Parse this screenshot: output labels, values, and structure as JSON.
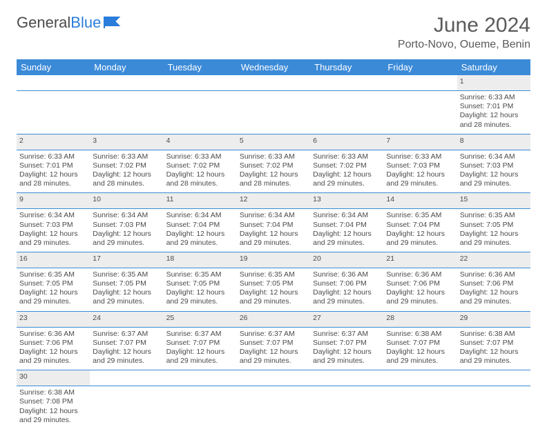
{
  "logo": {
    "text1": "General",
    "text2": "Blue",
    "accent_color": "#2a7ddb"
  },
  "title": "June 2024",
  "location": "Porto-Novo, Oueme, Benin",
  "colors": {
    "header_bg": "#3b8ad8",
    "header_text": "#ffffff",
    "daynum_bg": "#ededed",
    "divider": "#3b8ad8",
    "text": "#4a4a4a",
    "page_bg": "#ffffff"
  },
  "typography": {
    "title_fontsize": 30,
    "location_fontsize": 16,
    "dayhdr_fontsize": 13,
    "cell_fontsize": 10.5
  },
  "day_headers": [
    "Sunday",
    "Monday",
    "Tuesday",
    "Wednesday",
    "Thursday",
    "Friday",
    "Saturday"
  ],
  "weeks": [
    {
      "nums": [
        "",
        "",
        "",
        "",
        "",
        "",
        "1"
      ],
      "cells": [
        null,
        null,
        null,
        null,
        null,
        null,
        {
          "sunrise": "Sunrise: 6:33 AM",
          "sunset": "Sunset: 7:01 PM",
          "daylight1": "Daylight: 12 hours",
          "daylight2": "and 28 minutes."
        }
      ]
    },
    {
      "nums": [
        "2",
        "3",
        "4",
        "5",
        "6",
        "7",
        "8"
      ],
      "cells": [
        {
          "sunrise": "Sunrise: 6:33 AM",
          "sunset": "Sunset: 7:01 PM",
          "daylight1": "Daylight: 12 hours",
          "daylight2": "and 28 minutes."
        },
        {
          "sunrise": "Sunrise: 6:33 AM",
          "sunset": "Sunset: 7:02 PM",
          "daylight1": "Daylight: 12 hours",
          "daylight2": "and 28 minutes."
        },
        {
          "sunrise": "Sunrise: 6:33 AM",
          "sunset": "Sunset: 7:02 PM",
          "daylight1": "Daylight: 12 hours",
          "daylight2": "and 28 minutes."
        },
        {
          "sunrise": "Sunrise: 6:33 AM",
          "sunset": "Sunset: 7:02 PM",
          "daylight1": "Daylight: 12 hours",
          "daylight2": "and 28 minutes."
        },
        {
          "sunrise": "Sunrise: 6:33 AM",
          "sunset": "Sunset: 7:02 PM",
          "daylight1": "Daylight: 12 hours",
          "daylight2": "and 29 minutes."
        },
        {
          "sunrise": "Sunrise: 6:33 AM",
          "sunset": "Sunset: 7:03 PM",
          "daylight1": "Daylight: 12 hours",
          "daylight2": "and 29 minutes."
        },
        {
          "sunrise": "Sunrise: 6:34 AM",
          "sunset": "Sunset: 7:03 PM",
          "daylight1": "Daylight: 12 hours",
          "daylight2": "and 29 minutes."
        }
      ]
    },
    {
      "nums": [
        "9",
        "10",
        "11",
        "12",
        "13",
        "14",
        "15"
      ],
      "cells": [
        {
          "sunrise": "Sunrise: 6:34 AM",
          "sunset": "Sunset: 7:03 PM",
          "daylight1": "Daylight: 12 hours",
          "daylight2": "and 29 minutes."
        },
        {
          "sunrise": "Sunrise: 6:34 AM",
          "sunset": "Sunset: 7:03 PM",
          "daylight1": "Daylight: 12 hours",
          "daylight2": "and 29 minutes."
        },
        {
          "sunrise": "Sunrise: 6:34 AM",
          "sunset": "Sunset: 7:04 PM",
          "daylight1": "Daylight: 12 hours",
          "daylight2": "and 29 minutes."
        },
        {
          "sunrise": "Sunrise: 6:34 AM",
          "sunset": "Sunset: 7:04 PM",
          "daylight1": "Daylight: 12 hours",
          "daylight2": "and 29 minutes."
        },
        {
          "sunrise": "Sunrise: 6:34 AM",
          "sunset": "Sunset: 7:04 PM",
          "daylight1": "Daylight: 12 hours",
          "daylight2": "and 29 minutes."
        },
        {
          "sunrise": "Sunrise: 6:35 AM",
          "sunset": "Sunset: 7:04 PM",
          "daylight1": "Daylight: 12 hours",
          "daylight2": "and 29 minutes."
        },
        {
          "sunrise": "Sunrise: 6:35 AM",
          "sunset": "Sunset: 7:05 PM",
          "daylight1": "Daylight: 12 hours",
          "daylight2": "and 29 minutes."
        }
      ]
    },
    {
      "nums": [
        "16",
        "17",
        "18",
        "19",
        "20",
        "21",
        "22"
      ],
      "cells": [
        {
          "sunrise": "Sunrise: 6:35 AM",
          "sunset": "Sunset: 7:05 PM",
          "daylight1": "Daylight: 12 hours",
          "daylight2": "and 29 minutes."
        },
        {
          "sunrise": "Sunrise: 6:35 AM",
          "sunset": "Sunset: 7:05 PM",
          "daylight1": "Daylight: 12 hours",
          "daylight2": "and 29 minutes."
        },
        {
          "sunrise": "Sunrise: 6:35 AM",
          "sunset": "Sunset: 7:05 PM",
          "daylight1": "Daylight: 12 hours",
          "daylight2": "and 29 minutes."
        },
        {
          "sunrise": "Sunrise: 6:35 AM",
          "sunset": "Sunset: 7:05 PM",
          "daylight1": "Daylight: 12 hours",
          "daylight2": "and 29 minutes."
        },
        {
          "sunrise": "Sunrise: 6:36 AM",
          "sunset": "Sunset: 7:06 PM",
          "daylight1": "Daylight: 12 hours",
          "daylight2": "and 29 minutes."
        },
        {
          "sunrise": "Sunrise: 6:36 AM",
          "sunset": "Sunset: 7:06 PM",
          "daylight1": "Daylight: 12 hours",
          "daylight2": "and 29 minutes."
        },
        {
          "sunrise": "Sunrise: 6:36 AM",
          "sunset": "Sunset: 7:06 PM",
          "daylight1": "Daylight: 12 hours",
          "daylight2": "and 29 minutes."
        }
      ]
    },
    {
      "nums": [
        "23",
        "24",
        "25",
        "26",
        "27",
        "28",
        "29"
      ],
      "cells": [
        {
          "sunrise": "Sunrise: 6:36 AM",
          "sunset": "Sunset: 7:06 PM",
          "daylight1": "Daylight: 12 hours",
          "daylight2": "and 29 minutes."
        },
        {
          "sunrise": "Sunrise: 6:37 AM",
          "sunset": "Sunset: 7:07 PM",
          "daylight1": "Daylight: 12 hours",
          "daylight2": "and 29 minutes."
        },
        {
          "sunrise": "Sunrise: 6:37 AM",
          "sunset": "Sunset: 7:07 PM",
          "daylight1": "Daylight: 12 hours",
          "daylight2": "and 29 minutes."
        },
        {
          "sunrise": "Sunrise: 6:37 AM",
          "sunset": "Sunset: 7:07 PM",
          "daylight1": "Daylight: 12 hours",
          "daylight2": "and 29 minutes."
        },
        {
          "sunrise": "Sunrise: 6:37 AM",
          "sunset": "Sunset: 7:07 PM",
          "daylight1": "Daylight: 12 hours",
          "daylight2": "and 29 minutes."
        },
        {
          "sunrise": "Sunrise: 6:38 AM",
          "sunset": "Sunset: 7:07 PM",
          "daylight1": "Daylight: 12 hours",
          "daylight2": "and 29 minutes."
        },
        {
          "sunrise": "Sunrise: 6:38 AM",
          "sunset": "Sunset: 7:07 PM",
          "daylight1": "Daylight: 12 hours",
          "daylight2": "and 29 minutes."
        }
      ]
    },
    {
      "nums": [
        "30",
        "",
        "",
        "",
        "",
        "",
        ""
      ],
      "cells": [
        {
          "sunrise": "Sunrise: 6:38 AM",
          "sunset": "Sunset: 7:08 PM",
          "daylight1": "Daylight: 12 hours",
          "daylight2": "and 29 minutes."
        },
        null,
        null,
        null,
        null,
        null,
        null
      ]
    }
  ]
}
